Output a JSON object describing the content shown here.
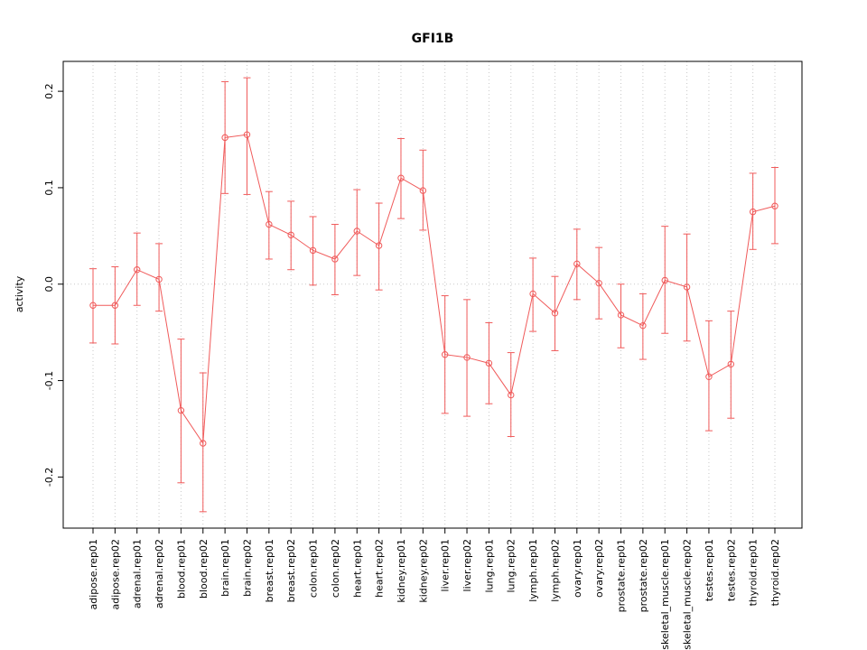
{
  "chart_data": {
    "type": "line",
    "title": "GFI1B",
    "ylabel": "activity",
    "xlabel": "",
    "ylim": [
      -0.253,
      0.231
    ],
    "ytick_labels": [
      "-0.2",
      "-0.1",
      "0.0",
      "0.1",
      "0.2"
    ],
    "grid": "vertical-dotted-per-category-plus-dotted-zero-line",
    "legend": "none",
    "series_color": "#f05a5a",
    "point_style": "open-circle-with-error-bars",
    "categories": [
      "adipose.rep01",
      "adipose.rep02",
      "adrenal.rep01",
      "adrenal.rep02",
      "blood.rep01",
      "blood.rep02",
      "brain.rep01",
      "brain.rep02",
      "breast.rep01",
      "breast.rep02",
      "colon.rep01",
      "colon.rep02",
      "heart.rep01",
      "heart.rep02",
      "kidney.rep01",
      "kidney.rep02",
      "liver.rep01",
      "liver.rep02",
      "lung.rep01",
      "lung.rep02",
      "lymph.rep01",
      "lymph.rep02",
      "ovary.rep01",
      "ovary.rep02",
      "prostate.rep01",
      "prostate.rep02",
      "skeletal_muscle.rep01",
      "skeletal_muscle.rep02",
      "testes.rep01",
      "testes.rep02",
      "thyroid.rep01",
      "thyroid.rep02"
    ],
    "values": [
      -0.022,
      -0.022,
      0.015,
      0.005,
      -0.131,
      -0.165,
      0.152,
      0.155,
      0.062,
      0.051,
      0.035,
      0.026,
      0.055,
      0.04,
      0.11,
      0.097,
      -0.073,
      -0.076,
      -0.082,
      -0.115,
      -0.01,
      -0.03,
      0.021,
      0.001,
      -0.032,
      -0.043,
      0.004,
      -0.003,
      -0.096,
      -0.083,
      0.075,
      0.081
    ],
    "error_low": [
      -0.061,
      -0.062,
      -0.022,
      -0.028,
      -0.206,
      -0.236,
      0.094,
      0.093,
      0.026,
      0.015,
      -0.001,
      -0.011,
      0.009,
      -0.006,
      0.068,
      0.056,
      -0.134,
      -0.137,
      -0.124,
      -0.158,
      -0.049,
      -0.069,
      -0.016,
      -0.036,
      -0.066,
      -0.078,
      -0.051,
      -0.059,
      -0.152,
      -0.139,
      0.036,
      0.042
    ],
    "error_high": [
      0.016,
      0.018,
      0.053,
      0.042,
      -0.057,
      -0.092,
      0.21,
      0.214,
      0.096,
      0.086,
      0.07,
      0.062,
      0.098,
      0.084,
      0.151,
      0.139,
      -0.012,
      -0.016,
      -0.04,
      -0.071,
      0.027,
      0.008,
      0.057,
      0.038,
      0.0,
      -0.01,
      0.06,
      0.052,
      -0.038,
      -0.028,
      0.115,
      0.121
    ]
  }
}
